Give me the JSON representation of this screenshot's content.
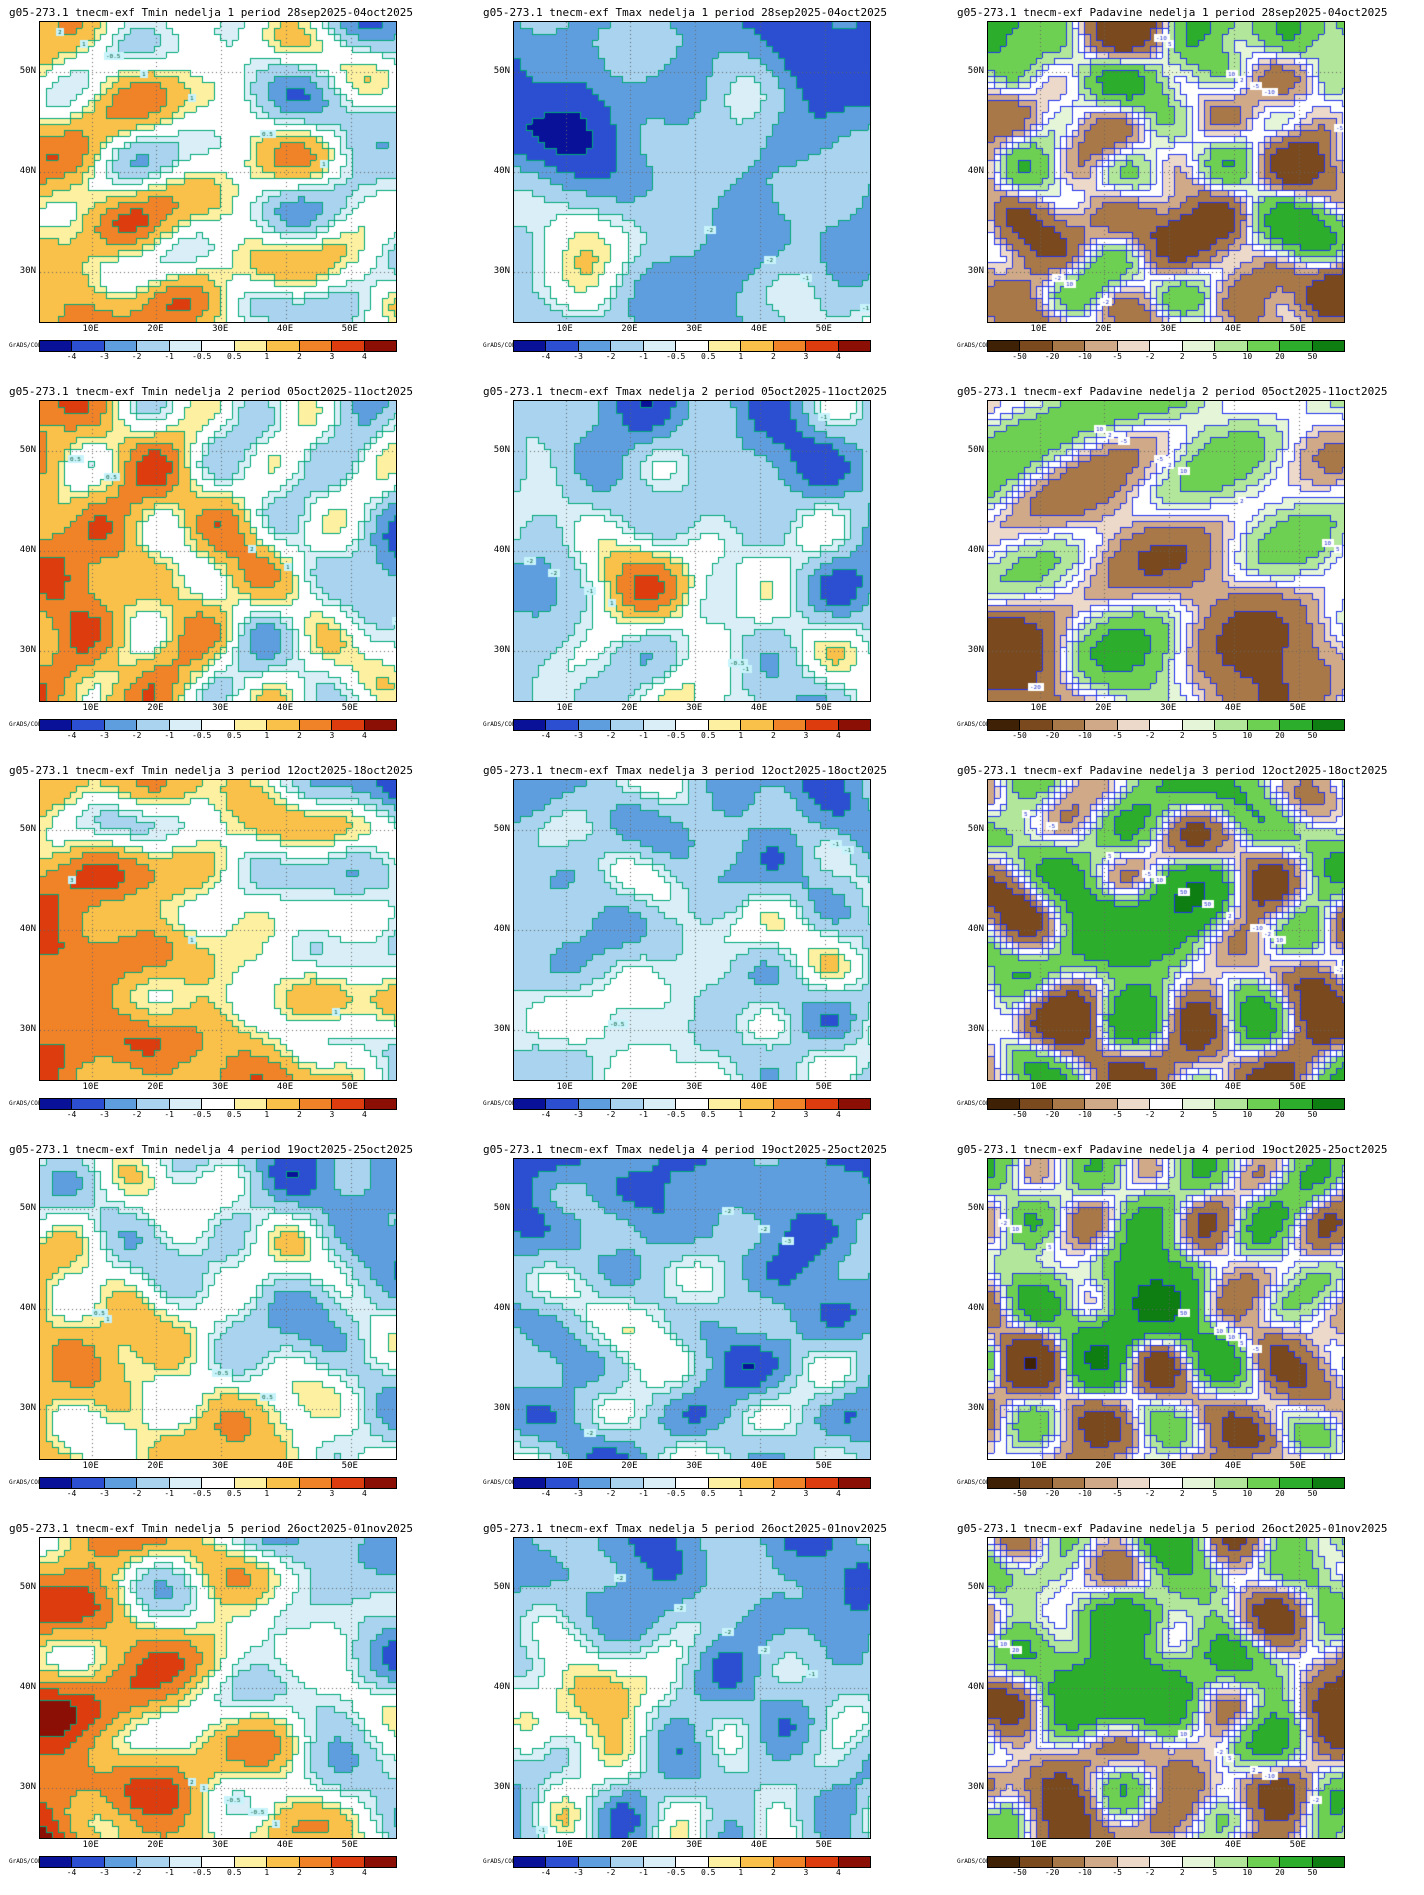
{
  "credit": "GrADS/COLA",
  "lat_ticks": [
    "50N",
    "40N",
    "30N"
  ],
  "lon_ticks": [
    "10E",
    "20E",
    "30E",
    "40E",
    "50E"
  ],
  "contour_colors": {
    "temperature": "#00a878",
    "precipitation": "#2233ee"
  },
  "colorbars": {
    "temperature": {
      "labels": [
        "-4",
        "-3",
        "-2",
        "-1",
        "-0.5",
        "0.5",
        "1",
        "2",
        "3",
        "4"
      ],
      "colors": [
        "#0a1199",
        "#2b4fd0",
        "#5f9ede",
        "#a9d3ee",
        "#d9eef7",
        "#ffffff",
        "#fdf0a0",
        "#f9c04a",
        "#f08228",
        "#dc3c0e",
        "#8c0f06"
      ]
    },
    "precipitation": {
      "labels": [
        "-50",
        "-20",
        "-10",
        "-5",
        "-2",
        "2",
        "5",
        "10",
        "20",
        "50"
      ],
      "colors": [
        "#3f2205",
        "#7a4a1e",
        "#a87848",
        "#cfa988",
        "#ecd9ca",
        "#ffffff",
        "#e4f5d8",
        "#b2e69a",
        "#6ed052",
        "#2cae2c",
        "#0e7d12"
      ]
    }
  },
  "panels": [
    {
      "title": "g05-273.1 tnecm-exf Tmin nedelja 1 period 28sep2025-04oct2025",
      "type": "tmin",
      "week": 1,
      "colorbar": "temperature"
    },
    {
      "title": "g05-273.1 tnecm-exf Tmax nedelja 1 period 28sep2025-04oct2025",
      "type": "tmax",
      "week": 1,
      "colorbar": "temperature"
    },
    {
      "title": "g05-273.1 tnecm-exf Padavine nedelja 1 period 28sep2025-04oct2025",
      "type": "precip",
      "week": 1,
      "colorbar": "precipitation"
    },
    {
      "title": "g05-273.1 tnecm-exf Tmin nedelja 2 period 05oct2025-11oct2025",
      "type": "tmin",
      "week": 2,
      "colorbar": "temperature"
    },
    {
      "title": "g05-273.1 tnecm-exf Tmax nedelja 2 period 05oct2025-11oct2025",
      "type": "tmax",
      "week": 2,
      "colorbar": "temperature"
    },
    {
      "title": "g05-273.1 tnecm-exf Padavine nedelja 2 period 05oct2025-11oct2025",
      "type": "precip",
      "week": 2,
      "colorbar": "precipitation"
    },
    {
      "title": "g05-273.1 tnecm-exf Tmin nedelja 3 period 12oct2025-18oct2025",
      "type": "tmin",
      "week": 3,
      "colorbar": "temperature"
    },
    {
      "title": "g05-273.1 tnecm-exf Tmax nedelja 3 period 12oct2025-18oct2025",
      "type": "tmax",
      "week": 3,
      "colorbar": "temperature"
    },
    {
      "title": "g05-273.1 tnecm-exf Padavine nedelja 3 period 12oct2025-18oct2025",
      "type": "precip",
      "week": 3,
      "colorbar": "precipitation"
    },
    {
      "title": "g05-273.1 tnecm-exf Tmin nedelja 4 period 19oct2025-25oct2025",
      "type": "tmin",
      "week": 4,
      "colorbar": "temperature"
    },
    {
      "title": "g05-273.1 tnecm-exf Tmax nedelja 4 period 19oct2025-25oct2025",
      "type": "tmax",
      "week": 4,
      "colorbar": "temperature"
    },
    {
      "title": "g05-273.1 tnecm-exf Padavine nedelja 4 period 19oct2025-25oct2025",
      "type": "precip",
      "week": 4,
      "colorbar": "precipitation"
    },
    {
      "title": "g05-273.1 tnecm-exf Tmin nedelja 5 period 26oct2025-01nov2025",
      "type": "tmin",
      "week": 5,
      "colorbar": "temperature"
    },
    {
      "title": "g05-273.1 tnecm-exf Tmax nedelja 5 period 26oct2025-01nov2025",
      "type": "tmax",
      "week": 5,
      "colorbar": "temperature"
    },
    {
      "title": "g05-273.1 tnecm-exf Padavine nedelja 5 period 26oct2025-01nov2025",
      "type": "precip",
      "week": 5,
      "colorbar": "precipitation"
    }
  ]
}
